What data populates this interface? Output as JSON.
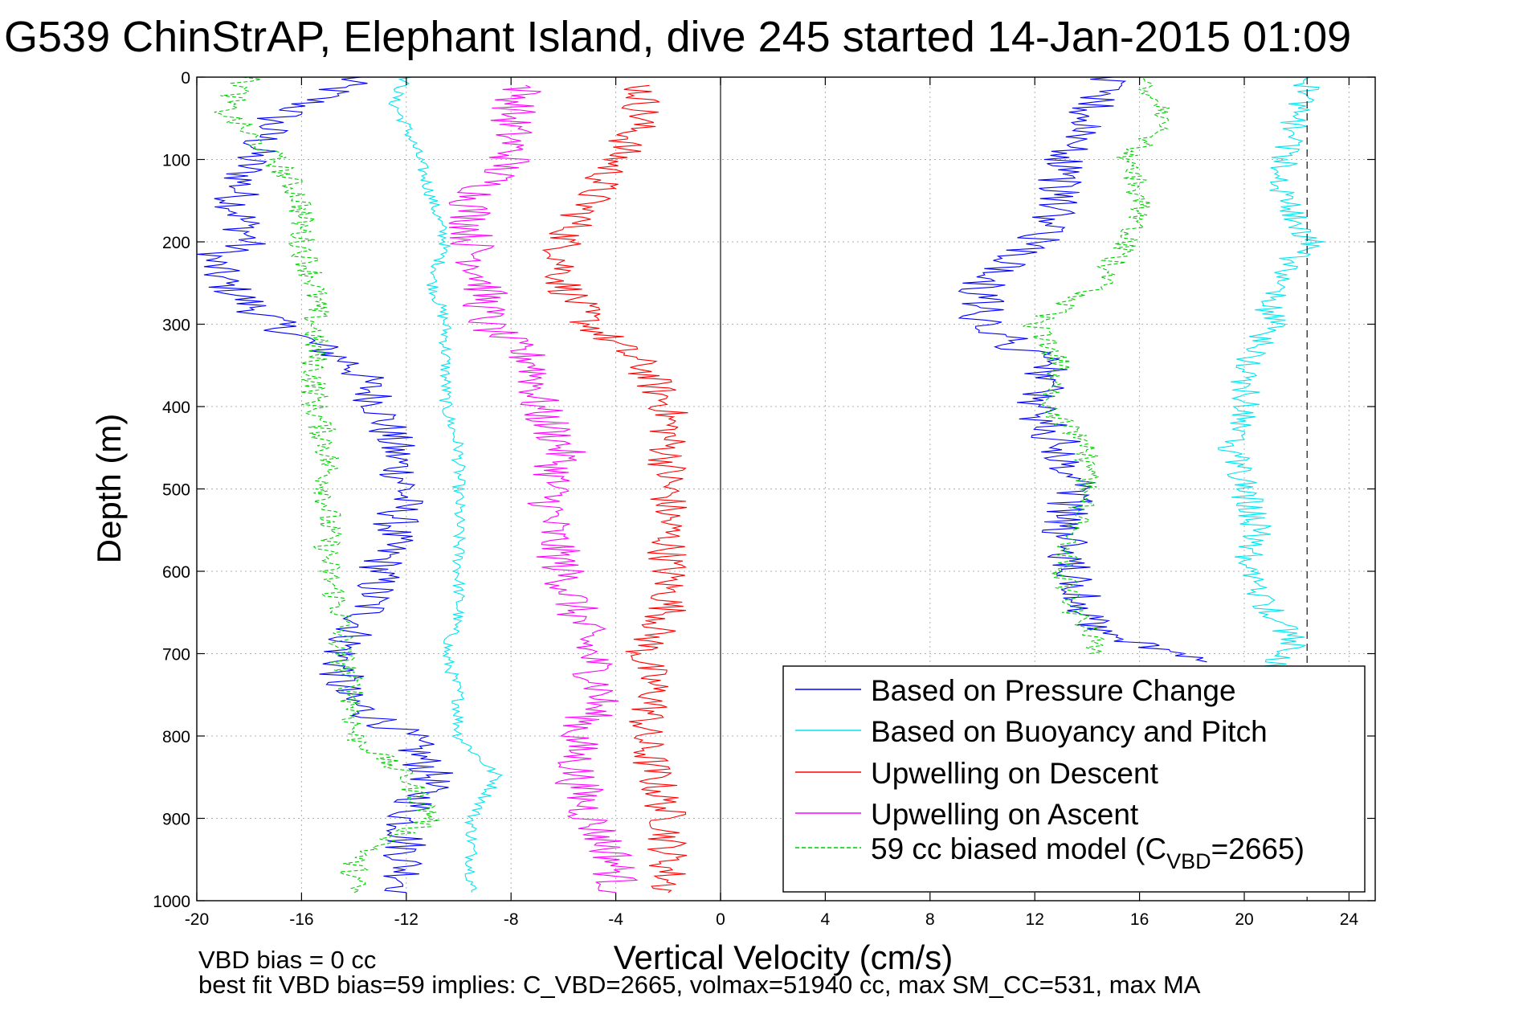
{
  "chart_data": {
    "type": "line",
    "title": "G539 ChinStrAP, Elephant Island, dive 245 started 14-Jan-2015 01:09",
    "xlabel": "Vertical Velocity (cm/s)",
    "ylabel": "Depth (m)",
    "xlim": [
      -20,
      25
    ],
    "ylim": [
      0,
      1000
    ],
    "y_reversed": true,
    "grid": true,
    "xticks": [
      -20,
      -16,
      -12,
      -8,
      -4,
      0,
      4,
      8,
      12,
      16,
      20,
      24
    ],
    "yticks": [
      0,
      100,
      200,
      300,
      400,
      500,
      600,
      700,
      800,
      900,
      1000
    ],
    "reference_lines": [
      {
        "x": 0,
        "style": "solid"
      },
      {
        "x": 22.4,
        "style": "dashed"
      }
    ],
    "legend_position": "bottom-right",
    "series": [
      {
        "name": "Based on Pressure Change",
        "color": "#0000ff",
        "style": "solid",
        "noise": 0.9,
        "points": [
          [
            -14,
            0
          ],
          [
            -15,
            20
          ],
          [
            -17,
            50
          ],
          [
            -18,
            100
          ],
          [
            -18.5,
            150
          ],
          [
            -18,
            200
          ],
          [
            -19.5,
            220
          ],
          [
            -19,
            250
          ],
          [
            -17,
            300
          ],
          [
            -14,
            350
          ],
          [
            -13,
            400
          ],
          [
            -12.5,
            450
          ],
          [
            -12,
            500
          ],
          [
            -12.5,
            550
          ],
          [
            -13,
            600
          ],
          [
            -13.5,
            650
          ],
          [
            -14.5,
            700
          ],
          [
            -14.5,
            750
          ],
          [
            -12,
            800
          ],
          [
            -11,
            850
          ],
          [
            -12,
            900
          ],
          [
            -12,
            950
          ],
          [
            -12,
            990
          ]
        ]
      },
      {
        "name": "Based on Buoyancy and Pitch",
        "color": "#00e5ee",
        "style": "solid",
        "noise": 0.25,
        "points": [
          [
            -12,
            0
          ],
          [
            -12.5,
            30
          ],
          [
            -12,
            60
          ],
          [
            -11.5,
            100
          ],
          [
            -11,
            150
          ],
          [
            -10.5,
            200
          ],
          [
            -11,
            250
          ],
          [
            -10.5,
            300
          ],
          [
            -10.5,
            350
          ],
          [
            -10.5,
            400
          ],
          [
            -10,
            450
          ],
          [
            -10,
            500
          ],
          [
            -10,
            550
          ],
          [
            -10,
            600
          ],
          [
            -10,
            650
          ],
          [
            -10.5,
            700
          ],
          [
            -10,
            750
          ],
          [
            -10,
            800
          ],
          [
            -8.5,
            850
          ],
          [
            -9.5,
            900
          ],
          [
            -9.5,
            950
          ],
          [
            -9.5,
            990
          ]
        ]
      },
      {
        "name": "Upwelling on Descent",
        "color": "#ff0000",
        "style": "solid",
        "noise": 0.8,
        "points": [
          [
            -3,
            10
          ],
          [
            -3,
            50
          ],
          [
            -4,
            100
          ],
          [
            -5,
            150
          ],
          [
            -6,
            200
          ],
          [
            -6,
            250
          ],
          [
            -5,
            300
          ],
          [
            -3,
            350
          ],
          [
            -2,
            400
          ],
          [
            -2,
            450
          ],
          [
            -2,
            500
          ],
          [
            -2,
            550
          ],
          [
            -2,
            600
          ],
          [
            -2,
            650
          ],
          [
            -3,
            700
          ],
          [
            -2.5,
            750
          ],
          [
            -3,
            800
          ],
          [
            -2.5,
            850
          ],
          [
            -2,
            900
          ],
          [
            -2,
            950
          ],
          [
            -2,
            990
          ]
        ]
      },
      {
        "name": "Upwelling on Ascent",
        "color": "#ff00ff",
        "style": "solid",
        "noise": 0.9,
        "points": [
          [
            -7.5,
            10
          ],
          [
            -8,
            50
          ],
          [
            -8,
            100
          ],
          [
            -9.5,
            150
          ],
          [
            -9.5,
            200
          ],
          [
            -9,
            250
          ],
          [
            -9,
            300
          ],
          [
            -7,
            350
          ],
          [
            -7,
            400
          ],
          [
            -6,
            450
          ],
          [
            -6.5,
            500
          ],
          [
            -6.5,
            550
          ],
          [
            -6,
            600
          ],
          [
            -5.5,
            650
          ],
          [
            -5,
            700
          ],
          [
            -4.5,
            750
          ],
          [
            -5.5,
            800
          ],
          [
            -5.5,
            850
          ],
          [
            -5,
            900
          ],
          [
            -4,
            950
          ],
          [
            -4,
            990
          ]
        ]
      },
      {
        "name": "59 cc biased model (C_VBD=2665)",
        "color": "#00cc00",
        "style": "dashed",
        "noise": 0.55,
        "points": [
          [
            -18,
            0
          ],
          [
            -19,
            40
          ],
          [
            -17,
            100
          ],
          [
            -16,
            150
          ],
          [
            -16,
            200
          ],
          [
            -15.5,
            250
          ],
          [
            -15.5,
            300
          ],
          [
            -15.5,
            350
          ],
          [
            -15.5,
            400
          ],
          [
            -15,
            450
          ],
          [
            -15,
            500
          ],
          [
            -15,
            550
          ],
          [
            -15,
            600
          ],
          [
            -14.5,
            650
          ],
          [
            -14.5,
            700
          ],
          [
            -14,
            750
          ],
          [
            -14,
            800
          ],
          [
            -12,
            850
          ],
          [
            -11,
            900
          ],
          [
            -14,
            950
          ],
          [
            -14,
            990
          ]
        ]
      },
      {
        "name": "Based on Pressure Change (ascent)",
        "color": "#0000ff",
        "style": "solid",
        "noise": 0.9,
        "points": [
          [
            18.5,
            710
          ],
          [
            15,
            680
          ],
          [
            14,
            650
          ],
          [
            13.5,
            600
          ],
          [
            13,
            550
          ],
          [
            13.5,
            500
          ],
          [
            13,
            450
          ],
          [
            12,
            400
          ],
          [
            12.5,
            350
          ],
          [
            10,
            300
          ],
          [
            10,
            250
          ],
          [
            12,
            200
          ],
          [
            13,
            150
          ],
          [
            13,
            100
          ],
          [
            14,
            50
          ],
          [
            15,
            0
          ]
        ]
      },
      {
        "name": "Based on Buoyancy and Pitch (ascent)",
        "color": "#00e5ee",
        "style": "solid",
        "noise": 0.6,
        "points": [
          [
            21,
            720
          ],
          [
            22,
            690
          ],
          [
            21,
            650
          ],
          [
            20,
            600
          ],
          [
            20.5,
            550
          ],
          [
            20,
            500
          ],
          [
            19.5,
            450
          ],
          [
            20,
            400
          ],
          [
            20,
            350
          ],
          [
            21,
            300
          ],
          [
            21,
            250
          ],
          [
            22.5,
            200
          ],
          [
            21.5,
            150
          ],
          [
            21.5,
            100
          ],
          [
            22,
            50
          ],
          [
            22.5,
            0
          ]
        ]
      },
      {
        "name": "59 cc biased model (ascent)",
        "color": "#00cc00",
        "style": "dashed",
        "noise": 0.5,
        "points": [
          [
            14.5,
            700
          ],
          [
            13.5,
            650
          ],
          [
            13,
            600
          ],
          [
            13.5,
            550
          ],
          [
            14,
            500
          ],
          [
            14,
            450
          ],
          [
            12.5,
            400
          ],
          [
            13,
            350
          ],
          [
            12,
            300
          ],
          [
            14.5,
            250
          ],
          [
            15.5,
            200
          ],
          [
            16,
            150
          ],
          [
            15.5,
            100
          ],
          [
            17,
            50
          ],
          [
            16,
            0
          ]
        ]
      }
    ]
  },
  "legend": {
    "entries": [
      {
        "label": "Based on Pressure Change",
        "color": "#0000ff",
        "dash": false
      },
      {
        "label": "Based on Buoyancy and Pitch",
        "color": "#00e5ee",
        "dash": false
      },
      {
        "label": "Upwelling on Descent",
        "color": "#ff0000",
        "dash": false
      },
      {
        "label": "Upwelling on Ascent",
        "color": "#ff00ff",
        "dash": false
      },
      {
        "label": "59 cc biased model (C",
        "sub": "VBD",
        "suffix": "=2665)",
        "color": "#00cc00",
        "dash": true
      }
    ]
  },
  "notes": {
    "line1": "VBD bias = 0 cc",
    "line2": "best fit VBD bias=59 implies: C_VBD=2665, volmax=51940 cc, max SM_CC=531, max MA"
  }
}
